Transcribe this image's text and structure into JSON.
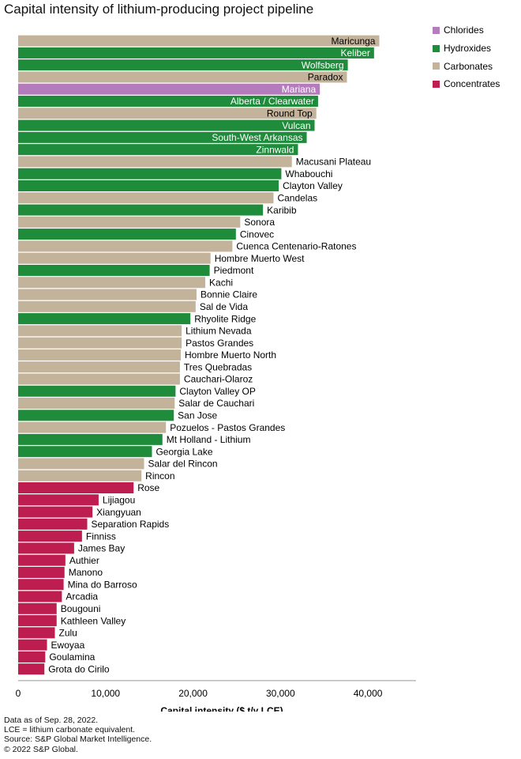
{
  "title": "Capital intensity of lithium-producing project pipeline",
  "colors": {
    "Chlorides": "#b57cbd",
    "Hydroxides": "#1e8c3a",
    "Carbonates": "#c4b39b",
    "Concentrates": "#bd1d4f"
  },
  "legend": [
    {
      "label": "Chlorides",
      "color": "#b57cbd"
    },
    {
      "label": "Hydroxides",
      "color": "#1e8c3a"
    },
    {
      "label": "Carbonates",
      "color": "#c4b39b"
    },
    {
      "label": "Concentrates",
      "color": "#bd1d4f"
    }
  ],
  "footnotes": [
    "Data as of Sep. 28, 2022.",
    "LCE = lithium carbonate equivalent.",
    "Source: S&P Global Market Intelligence.",
    "© 2022 S&P Global."
  ],
  "chart_data": {
    "type": "bar",
    "orientation": "horizontal",
    "title": "Capital intensity of lithium-producing project pipeline",
    "xlabel": "Capital intensity ($ t/y LCE)",
    "ylabel": "",
    "xlim": [
      0,
      45500
    ],
    "xticks": [
      0,
      10000,
      20000,
      30000,
      40000
    ],
    "xtick_labels": [
      "0",
      "10,000",
      "20,000",
      "30,000",
      "40,000"
    ],
    "legend_position": "top-right",
    "series": [
      {
        "name": "Capital intensity",
        "values": [
          41300,
          40700,
          37700,
          37600,
          34500,
          34300,
          34100,
          33900,
          33000,
          32000,
          31300,
          30100,
          29800,
          29200,
          28000,
          25400,
          24900,
          24500,
          22000,
          21900,
          21400,
          20400,
          20300,
          19700,
          18700,
          18700,
          18600,
          18500,
          18500,
          18000,
          17900,
          17800,
          16900,
          16500,
          15300,
          14400,
          14100,
          13200,
          9200,
          8500,
          7900,
          7300,
          6400,
          5400,
          5300,
          5200,
          5000,
          4400,
          4400,
          4200,
          3300,
          3100,
          3000
        ]
      }
    ],
    "bars": [
      {
        "label": "Maricunga",
        "value": 41300,
        "type": "Carbonates",
        "inside": true
      },
      {
        "label": "Keliber",
        "value": 40700,
        "type": "Hydroxides",
        "inside": true
      },
      {
        "label": "Wolfsberg",
        "value": 37700,
        "type": "Hydroxides",
        "inside": true
      },
      {
        "label": "Paradox",
        "value": 37600,
        "type": "Carbonates",
        "inside": true
      },
      {
        "label": "Mariana",
        "value": 34500,
        "type": "Chlorides",
        "inside": true
      },
      {
        "label": "Alberta / Clearwater",
        "value": 34300,
        "type": "Hydroxides",
        "inside": true
      },
      {
        "label": "Round Top",
        "value": 34100,
        "type": "Carbonates",
        "inside": true
      },
      {
        "label": "Vulcan",
        "value": 33900,
        "type": "Hydroxides",
        "inside": true
      },
      {
        "label": "South-West Arkansas",
        "value": 33000,
        "type": "Hydroxides",
        "inside": true
      },
      {
        "label": "Zinnwald",
        "value": 32000,
        "type": "Hydroxides",
        "inside": true
      },
      {
        "label": "Macusani Plateau",
        "value": 31300,
        "type": "Carbonates",
        "inside": false
      },
      {
        "label": "Whabouchi",
        "value": 30100,
        "type": "Hydroxides",
        "inside": false
      },
      {
        "label": "Clayton Valley",
        "value": 29800,
        "type": "Hydroxides",
        "inside": false
      },
      {
        "label": "Candelas",
        "value": 29200,
        "type": "Carbonates",
        "inside": false
      },
      {
        "label": "Karibib",
        "value": 28000,
        "type": "Hydroxides",
        "inside": false
      },
      {
        "label": "Sonora",
        "value": 25400,
        "type": "Carbonates",
        "inside": false
      },
      {
        "label": "Cinovec",
        "value": 24900,
        "type": "Hydroxides",
        "inside": false
      },
      {
        "label": "Cuenca Centenario-Ratones",
        "value": 24500,
        "type": "Carbonates",
        "inside": false
      },
      {
        "label": "Hombre Muerto West",
        "value": 22000,
        "type": "Carbonates",
        "inside": false
      },
      {
        "label": "Piedmont",
        "value": 21900,
        "type": "Hydroxides",
        "inside": false
      },
      {
        "label": "Kachi",
        "value": 21400,
        "type": "Carbonates",
        "inside": false
      },
      {
        "label": "Bonnie Claire",
        "value": 20400,
        "type": "Carbonates",
        "inside": false
      },
      {
        "label": "Sal de Vida",
        "value": 20300,
        "type": "Carbonates",
        "inside": false
      },
      {
        "label": "Rhyolite Ridge",
        "value": 19700,
        "type": "Hydroxides",
        "inside": false
      },
      {
        "label": "Lithium Nevada",
        "value": 18700,
        "type": "Carbonates",
        "inside": false
      },
      {
        "label": "Pastos Grandes",
        "value": 18700,
        "type": "Carbonates",
        "inside": false
      },
      {
        "label": "Hombre Muerto North",
        "value": 18600,
        "type": "Carbonates",
        "inside": false
      },
      {
        "label": "Tres Quebradas",
        "value": 18500,
        "type": "Carbonates",
        "inside": false
      },
      {
        "label": "Cauchari-Olaroz",
        "value": 18500,
        "type": "Carbonates",
        "inside": false
      },
      {
        "label": "Clayton Valley OP",
        "value": 18000,
        "type": "Hydroxides",
        "inside": false
      },
      {
        "label": "Salar de Cauchari",
        "value": 17900,
        "type": "Carbonates",
        "inside": false
      },
      {
        "label": "San Jose",
        "value": 17800,
        "type": "Hydroxides",
        "inside": false
      },
      {
        "label": "Pozuelos - Pastos Grandes",
        "value": 16900,
        "type": "Carbonates",
        "inside": false
      },
      {
        "label": "Mt Holland - Lithium",
        "value": 16500,
        "type": "Hydroxides",
        "inside": false
      },
      {
        "label": "Georgia Lake",
        "value": 15300,
        "type": "Hydroxides",
        "inside": false
      },
      {
        "label": "Salar del Rincon",
        "value": 14400,
        "type": "Carbonates",
        "inside": false
      },
      {
        "label": "Rincon",
        "value": 14100,
        "type": "Carbonates",
        "inside": false
      },
      {
        "label": "Rose",
        "value": 13200,
        "type": "Concentrates",
        "inside": false
      },
      {
        "label": "Lijiagou",
        "value": 9200,
        "type": "Concentrates",
        "inside": false
      },
      {
        "label": "Xiangyuan",
        "value": 8500,
        "type": "Concentrates",
        "inside": false
      },
      {
        "label": "Separation Rapids",
        "value": 7900,
        "type": "Concentrates",
        "inside": false
      },
      {
        "label": "Finniss",
        "value": 7300,
        "type": "Concentrates",
        "inside": false
      },
      {
        "label": "James Bay",
        "value": 6400,
        "type": "Concentrates",
        "inside": false
      },
      {
        "label": "Authier",
        "value": 5400,
        "type": "Concentrates",
        "inside": false
      },
      {
        "label": "Manono",
        "value": 5300,
        "type": "Concentrates",
        "inside": false
      },
      {
        "label": "Mina do Barroso",
        "value": 5200,
        "type": "Concentrates",
        "inside": false
      },
      {
        "label": "Arcadia",
        "value": 5000,
        "type": "Concentrates",
        "inside": false
      },
      {
        "label": "Bougouni",
        "value": 4400,
        "type": "Concentrates",
        "inside": false
      },
      {
        "label": "Kathleen Valley",
        "value": 4400,
        "type": "Concentrates",
        "inside": false
      },
      {
        "label": "Zulu",
        "value": 4200,
        "type": "Concentrates",
        "inside": false
      },
      {
        "label": "Ewoyaa",
        "value": 3300,
        "type": "Concentrates",
        "inside": false
      },
      {
        "label": "Goulamina",
        "value": 3100,
        "type": "Concentrates",
        "inside": false
      },
      {
        "label": "Grota do Cirilo",
        "value": 3000,
        "type": "Concentrates",
        "inside": false
      }
    ]
  }
}
